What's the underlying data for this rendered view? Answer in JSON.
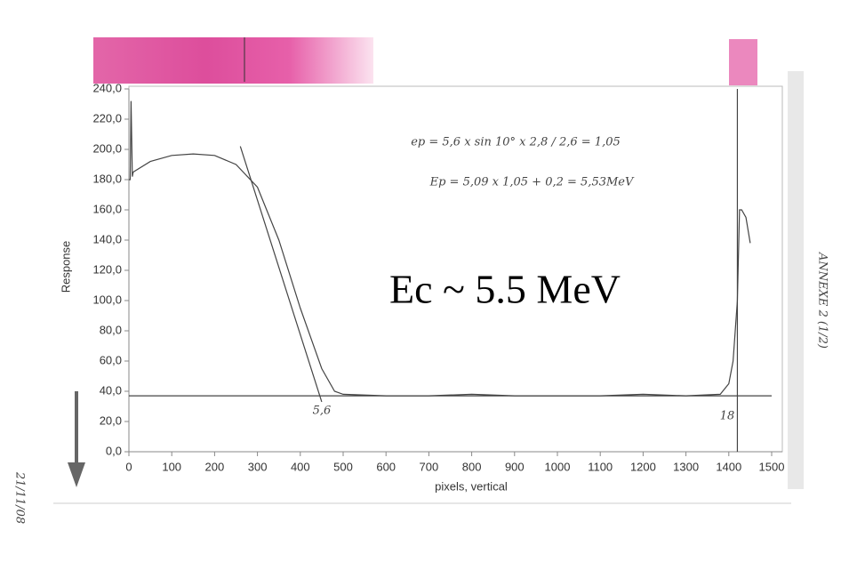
{
  "chart_data": {
    "type": "line",
    "x_label": "pixels, vertical",
    "y_label": "Response",
    "xlim": [
      0,
      1500
    ],
    "ylim": [
      0,
      240
    ],
    "xticks": [
      0,
      100,
      200,
      300,
      400,
      500,
      600,
      700,
      800,
      900,
      1000,
      1100,
      1200,
      1300,
      1400,
      1500
    ],
    "yticks": [
      {
        "value": 0,
        "label": "0,0"
      },
      {
        "value": 20,
        "label": "20,0"
      },
      {
        "value": 40,
        "label": "40,0"
      },
      {
        "value": 60,
        "label": "60,0"
      },
      {
        "value": 80,
        "label": "80,0"
      },
      {
        "value": 100,
        "label": "100,0"
      },
      {
        "value": 120,
        "label": "120,0"
      },
      {
        "value": 140,
        "label": "140,0"
      },
      {
        "value": 160,
        "label": "160,0"
      },
      {
        "value": 180,
        "label": "180,0"
      },
      {
        "value": 200,
        "label": "200,0"
      },
      {
        "value": 220,
        "label": "220,0"
      },
      {
        "value": 240,
        "label": "240,0"
      }
    ],
    "series": [
      {
        "color": "#444",
        "x": [
          0,
          3,
          5,
          8,
          10,
          50,
          100,
          150,
          200,
          250,
          300,
          350,
          400,
          450,
          480,
          500,
          600,
          700,
          800,
          900,
          1000,
          1100,
          1200,
          1300,
          1380,
          1400,
          1410,
          1420,
          1425,
          1430,
          1440,
          1450
        ],
        "values": [
          180,
          180,
          232,
          182,
          185,
          192,
          196,
          197,
          196,
          190,
          175,
          140,
          95,
          55,
          40,
          38,
          37,
          37,
          38,
          37,
          37,
          37,
          38,
          37,
          38,
          45,
          60,
          100,
          160,
          160,
          155,
          138
        ]
      },
      {
        "color": "#444",
        "x": [
          260,
          450
        ],
        "values": [
          202,
          33
        ]
      },
      {
        "color": "#444",
        "x": [
          0,
          1500
        ],
        "values": [
          37,
          37
        ]
      },
      {
        "color": "#444",
        "x": [
          1420,
          1420
        ],
        "values": [
          0,
          240
        ]
      }
    ],
    "annotations": [
      "ep = 5,6 x sin 10° x 2,8 / 2,6 = 1,05",
      "Ep = 5,09 x 1,05 + 0,2 = 5,53MeV",
      "Ec ~ 5.5 MeV",
      "5,6",
      "18",
      "ANNEXE 2 (1/2)",
      "21/11/08"
    ]
  }
}
